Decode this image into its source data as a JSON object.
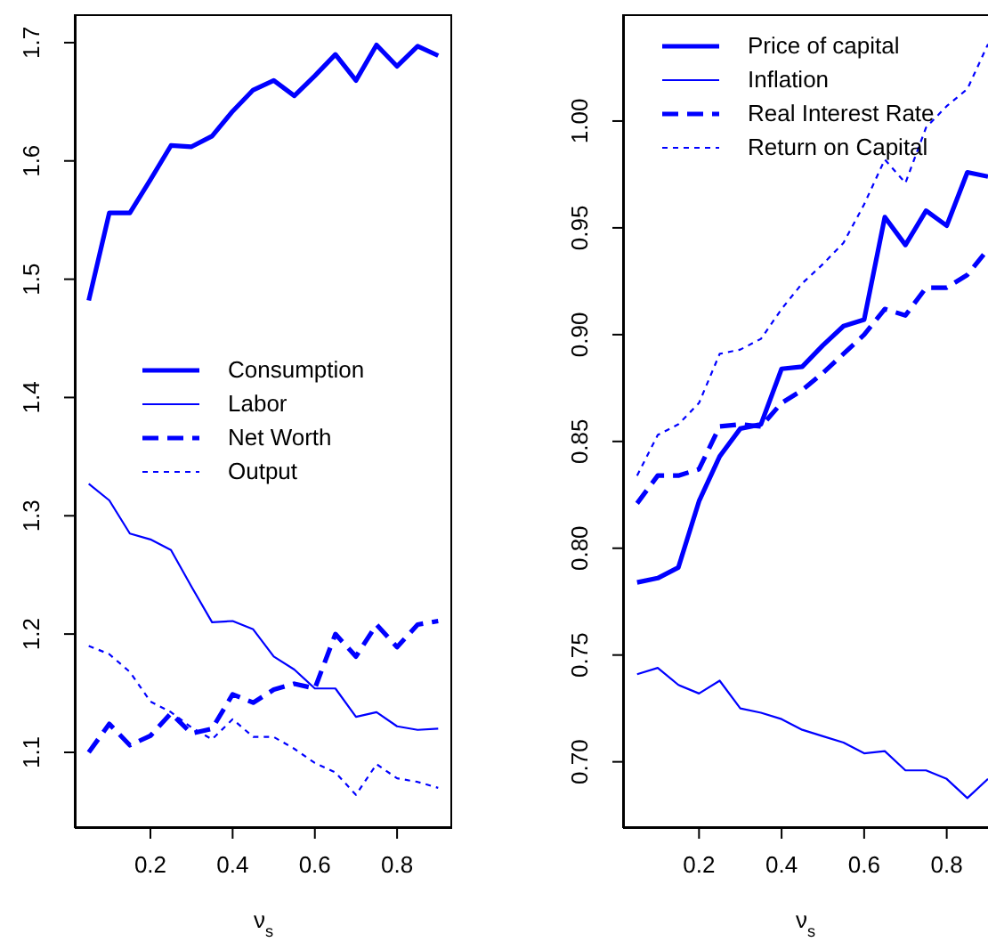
{
  "chart_data": [
    {
      "type": "line",
      "xlabel": "ν$_{s}$",
      "x": [
        0.05,
        0.1,
        0.15,
        0.2,
        0.25,
        0.3,
        0.35,
        0.4,
        0.45,
        0.5,
        0.55,
        0.6,
        0.65,
        0.7,
        0.75,
        0.8,
        0.85,
        0.9
      ],
      "xlim": [
        0.016,
        0.934
      ],
      "xticks": [
        0.2,
        0.4,
        0.6,
        0.8
      ],
      "ylim": [
        1.036,
        1.724
      ],
      "yticks": [
        1.1,
        1.2,
        1.3,
        1.4,
        1.5,
        1.6,
        1.7
      ],
      "legend": "left",
      "grid": false,
      "series": [
        {
          "name": "Consumption",
          "color": "#0000ff",
          "line_style": "solid",
          "values": [
            1.482,
            1.556,
            1.556,
            1.584,
            1.613,
            1.612,
            1.621,
            1.642,
            1.66,
            1.668,
            1.655,
            1.672,
            1.69,
            1.668,
            1.698,
            1.68,
            1.697,
            1.689
          ]
        },
        {
          "name": "Labor",
          "color": "#0000ff",
          "line_style": "solid",
          "values": [
            1.327,
            1.313,
            1.285,
            1.28,
            1.271,
            1.24,
            1.21,
            1.211,
            1.204,
            1.181,
            1.17,
            1.154,
            1.154,
            1.13,
            1.134,
            1.122,
            1.119,
            1.12
          ]
        },
        {
          "name": "Net Worth",
          "color": "#0000ff",
          "line_style": "dashed",
          "values": [
            1.1,
            1.124,
            1.106,
            1.114,
            1.133,
            1.116,
            1.12,
            1.149,
            1.142,
            1.153,
            1.158,
            1.154,
            1.2,
            1.181,
            1.208,
            1.189,
            1.208,
            1.211
          ]
        },
        {
          "name": "Output",
          "color": "#0000ff",
          "line_style": "dotted",
          "values": [
            1.19,
            1.183,
            1.168,
            1.143,
            1.134,
            1.121,
            1.111,
            1.128,
            1.113,
            1.113,
            1.103,
            1.091,
            1.083,
            1.064,
            1.09,
            1.078,
            1.075,
            1.07
          ]
        }
      ]
    },
    {
      "type": "line",
      "xlabel": "ν$_{s}$",
      "x": [
        0.05,
        0.1,
        0.15,
        0.2,
        0.25,
        0.3,
        0.35,
        0.4,
        0.45,
        0.5,
        0.55,
        0.6,
        0.65,
        0.7,
        0.75,
        0.8,
        0.85,
        0.9
      ],
      "xlim": [
        0.016,
        0.9
      ],
      "xticks": [
        0.2,
        0.4,
        0.6,
        0.8
      ],
      "ylim": [
        0.669,
        1.05
      ],
      "yticks": [
        {
          "value": 0.7,
          "label": "0.70"
        },
        {
          "value": 0.75,
          "label": "0.75"
        },
        {
          "value": 0.8,
          "label": "0.80"
        },
        {
          "value": 0.85,
          "label": "0.85"
        },
        {
          "value": 0.9,
          "label": "0.90"
        },
        {
          "value": 0.95,
          "label": "0.95"
        },
        {
          "value": 1.0,
          "label": "1.00"
        }
      ],
      "legend": "top left",
      "grid": false,
      "series": [
        {
          "name": "Price of capital",
          "color": "#0000ff",
          "line_style": "solid",
          "values": [
            0.784,
            0.786,
            0.791,
            0.822,
            0.843,
            0.856,
            0.858,
            0.884,
            0.885,
            0.895,
            0.904,
            0.907,
            0.955,
            0.942,
            0.958,
            0.951,
            0.976,
            0.974
          ]
        },
        {
          "name": "Inflation",
          "color": "#0000ff",
          "line_style": "solid",
          "values": [
            0.741,
            0.744,
            0.736,
            0.732,
            0.738,
            0.725,
            0.723,
            0.72,
            0.715,
            0.712,
            0.709,
            0.704,
            0.705,
            0.696,
            0.696,
            0.692,
            0.683,
            0.692
          ]
        },
        {
          "name": "Real Interest Rate",
          "color": "#0000ff",
          "line_style": "dashed",
          "values": [
            0.821,
            0.834,
            0.834,
            0.837,
            0.857,
            0.858,
            0.857,
            0.868,
            0.874,
            0.882,
            0.891,
            0.9,
            0.912,
            0.909,
            0.922,
            0.922,
            0.928,
            0.94
          ]
        },
        {
          "name": "Return on Capital",
          "color": "#0000ff",
          "line_style": "dotted",
          "values": [
            0.834,
            0.853,
            0.858,
            0.868,
            0.891,
            0.893,
            0.898,
            0.912,
            0.924,
            0.933,
            0.943,
            0.961,
            0.982,
            0.971,
            0.997,
            1.007,
            1.015,
            1.036
          ]
        }
      ]
    }
  ]
}
